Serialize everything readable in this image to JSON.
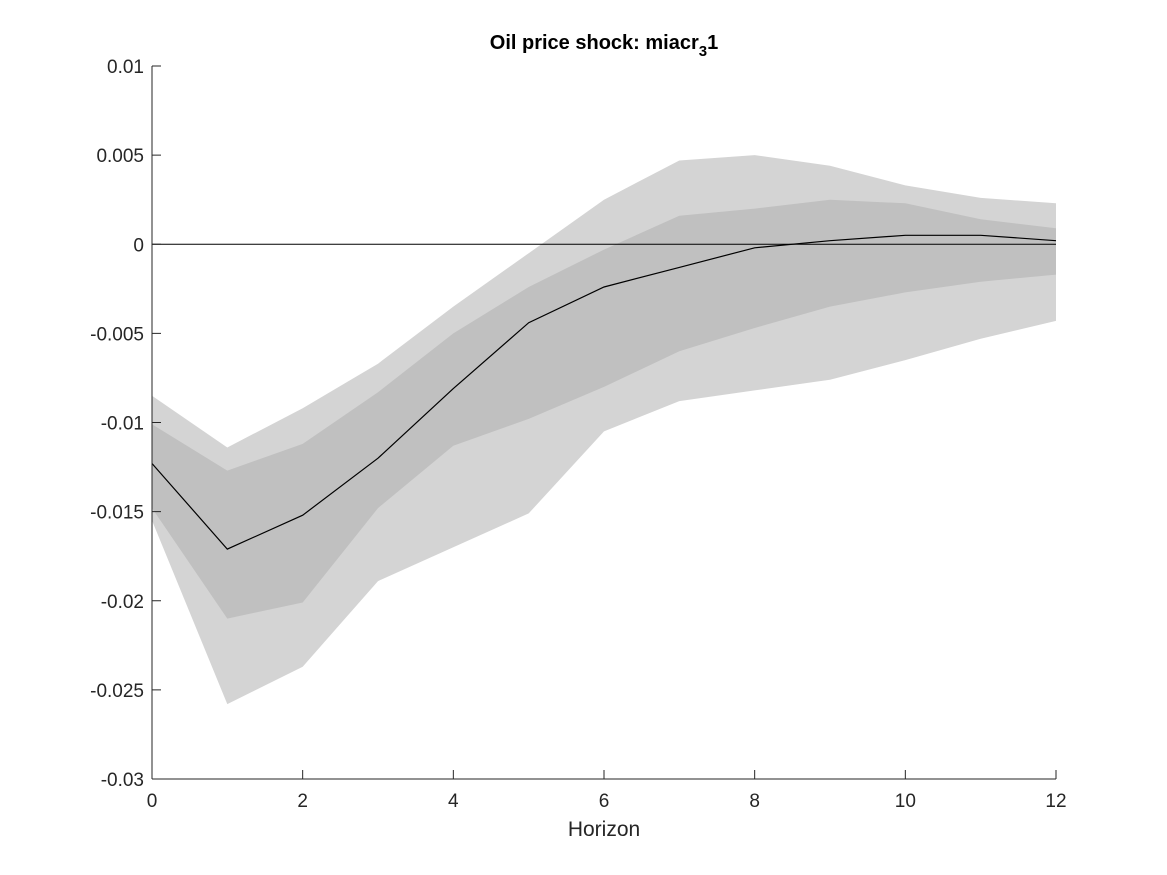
{
  "chart_data": {
    "type": "area",
    "title": {
      "main": "Oil price shock: miacr",
      "subscript": "3",
      "suffix": "1"
    },
    "xlabel": "Horizon",
    "ylabel": "",
    "xlim": [
      0,
      12
    ],
    "ylim": [
      -0.03,
      0.01
    ],
    "x_ticks": [
      0,
      2,
      4,
      6,
      8,
      10,
      12
    ],
    "x_tick_labels": [
      "0",
      "2",
      "4",
      "6",
      "8",
      "10",
      "12"
    ],
    "y_ticks": [
      0.01,
      0.005,
      0,
      -0.005,
      -0.01,
      -0.015,
      -0.02,
      -0.025,
      -0.03
    ],
    "y_tick_labels": [
      "0.01",
      "0.005",
      "0",
      "-0.005",
      "-0.01",
      "-0.015",
      "-0.02",
      "-0.025",
      "-0.03"
    ],
    "grid": false,
    "legend": "none",
    "x": [
      0,
      1,
      2,
      3,
      4,
      5,
      6,
      7,
      8,
      9,
      10,
      11,
      12
    ],
    "outer_band": {
      "upper": [
        -0.0085,
        -0.0114,
        -0.0092,
        -0.0067,
        -0.0035,
        -0.0005,
        0.0025,
        0.0047,
        0.005,
        0.0044,
        0.0033,
        0.0026,
        0.0023
      ],
      "lower": [
        -0.0155,
        -0.0258,
        -0.0237,
        -0.0189,
        -0.017,
        -0.0151,
        -0.0105,
        -0.0088,
        -0.0082,
        -0.0076,
        -0.0065,
        -0.0053,
        -0.0043
      ],
      "color": "#d4d4d4"
    },
    "inner_band": {
      "upper": [
        -0.0101,
        -0.0127,
        -0.0112,
        -0.0083,
        -0.005,
        -0.0024,
        -0.0003,
        0.0016,
        0.002,
        0.0025,
        0.0023,
        0.0014,
        0.0009
      ],
      "lower": [
        -0.0148,
        -0.021,
        -0.0201,
        -0.0148,
        -0.0113,
        -0.0098,
        -0.008,
        -0.006,
        -0.0047,
        -0.0035,
        -0.0027,
        -0.0021,
        -0.0017
      ],
      "color": "#c0c0c0"
    },
    "median": {
      "values": [
        -0.0123,
        -0.0171,
        -0.0152,
        -0.012,
        -0.0081,
        -0.0044,
        -0.0024,
        -0.0013,
        -0.0002,
        0.0002,
        0.0005,
        0.0005,
        0.0002
      ],
      "color": "#000000"
    },
    "zero_line": {
      "y": 0,
      "color": "#000000"
    }
  }
}
